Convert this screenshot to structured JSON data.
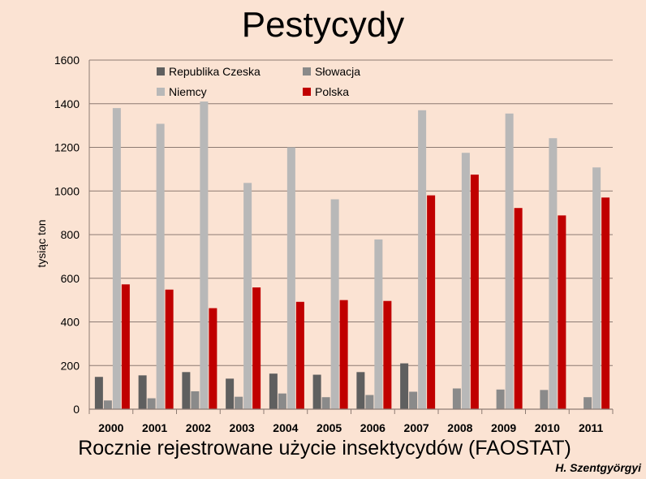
{
  "title": "Pestycydy",
  "caption": "Rocznie rejestrowane użycie insektycydów (FAOSTAT)",
  "author": "H. Szentgyörgyi",
  "colors": {
    "background": "#fbe3d3",
    "Republika Czeska": "#5f5f5f",
    "Słowacja": "#8a8a8a",
    "Niemcy": "#b8b8b8",
    "Polska": "#c00000",
    "grid": "#8c7b73"
  },
  "chart_data": {
    "type": "bar",
    "ylabel": "tysiąc ton",
    "xlabel": "",
    "ylim": [
      0,
      1600
    ],
    "yticks": [
      0,
      200,
      400,
      600,
      800,
      1000,
      1200,
      1400,
      1600
    ],
    "grid": true,
    "legend_position": "top-left inside",
    "categories": [
      "2000",
      "2001",
      "2002",
      "2003",
      "2004",
      "2005",
      "2006",
      "2007",
      "2008",
      "2009",
      "2010",
      "2011"
    ],
    "series": [
      {
        "name": "Republika Czeska",
        "values": [
          148,
          155,
          170,
          140,
          163,
          158,
          170,
          210,
          0,
          0,
          0,
          0
        ]
      },
      {
        "name": "Słowacja",
        "values": [
          40,
          50,
          82,
          57,
          72,
          55,
          65,
          80,
          95,
          90,
          88,
          55
        ]
      },
      {
        "name": "Niemcy",
        "values": [
          1380,
          1308,
          1410,
          1037,
          1200,
          962,
          778,
          1370,
          1175,
          1355,
          1242,
          1108
        ]
      },
      {
        "name": "Polska",
        "values": [
          572,
          548,
          463,
          558,
          492,
          500,
          496,
          980,
          1075,
          922,
          888,
          970
        ]
      }
    ]
  }
}
